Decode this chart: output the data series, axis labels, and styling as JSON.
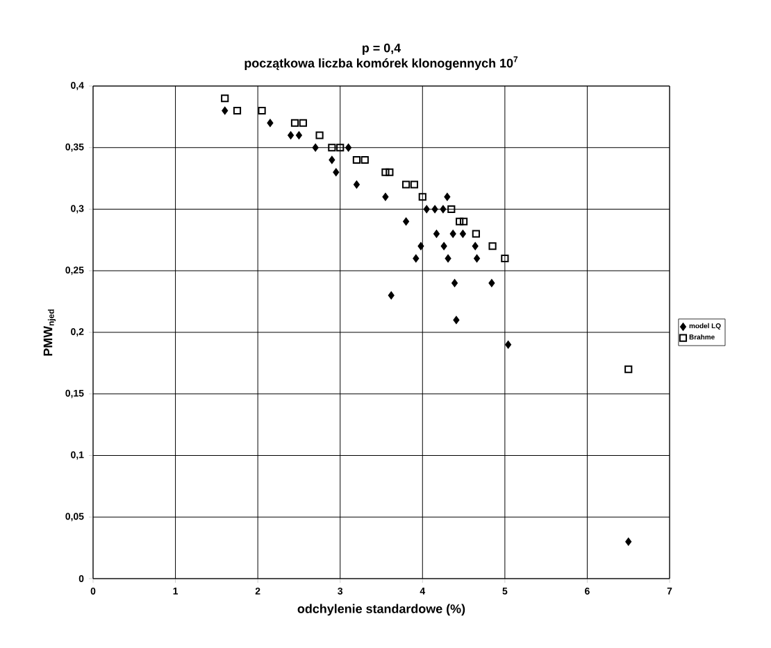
{
  "chart_data": {
    "type": "scatter",
    "title": "p = 0,4",
    "subtitle": "początkowa liczba komórek klonogennych 10$^{7}$",
    "xlabel": "odchylenie standardowe (%)",
    "ylabel": "PMW$_{njed}$",
    "xlim": [
      0,
      7
    ],
    "xticks": [
      0,
      1,
      2,
      3,
      4,
      5,
      6,
      7
    ],
    "ylim": [
      0,
      0.4
    ],
    "yticks": [
      {
        "value": 0,
        "label": "0"
      },
      {
        "value": 0.05,
        "label": "0,05"
      },
      {
        "value": 0.1,
        "label": "0,1"
      },
      {
        "value": 0.15,
        "label": "0,15"
      },
      {
        "value": 0.2,
        "label": "0,2"
      },
      {
        "value": 0.25,
        "label": "0,25"
      },
      {
        "value": 0.3,
        "label": "0,3"
      },
      {
        "value": 0.35,
        "label": "0,35"
      },
      {
        "value": 0.4,
        "label": "0,4"
      }
    ],
    "grid": true,
    "legend": "right",
    "series": [
      {
        "name": "model LQ",
        "color": "#000000",
        "marker": "diamond",
        "x": [
          1.6,
          2.15,
          2.4,
          2.5,
          2.7,
          2.9,
          2.95,
          3.1,
          3.2,
          3.55,
          3.8,
          4.05,
          4.15,
          4.25,
          4.3,
          4.17,
          4.37,
          4.49,
          3.98,
          4.26,
          4.64,
          3.92,
          4.31,
          4.66,
          4.39,
          4.84,
          3.62,
          4.41,
          5.04,
          6.5
        ],
        "values": [
          0.38,
          0.37,
          0.36,
          0.36,
          0.35,
          0.34,
          0.33,
          0.35,
          0.32,
          0.31,
          0.29,
          0.3,
          0.3,
          0.3,
          0.31,
          0.28,
          0.28,
          0.28,
          0.27,
          0.27,
          0.27,
          0.26,
          0.26,
          0.26,
          0.24,
          0.24,
          0.23,
          0.21,
          0.19,
          0.03
        ]
      },
      {
        "name": "Brahme",
        "color": "#000000",
        "marker": "square",
        "x": [
          1.6,
          1.75,
          2.05,
          2.45,
          2.55,
          2.75,
          2.9,
          3.0,
          3.2,
          3.3,
          3.55,
          3.6,
          3.8,
          3.9,
          4.0,
          4.35,
          4.45,
          4.5,
          4.65,
          4.85,
          5.0,
          6.5
        ],
        "values": [
          0.39,
          0.38,
          0.38,
          0.37,
          0.37,
          0.36,
          0.35,
          0.35,
          0.34,
          0.34,
          0.33,
          0.33,
          0.32,
          0.32,
          0.31,
          0.3,
          0.29,
          0.29,
          0.28,
          0.27,
          0.26,
          0.17
        ]
      }
    ]
  }
}
